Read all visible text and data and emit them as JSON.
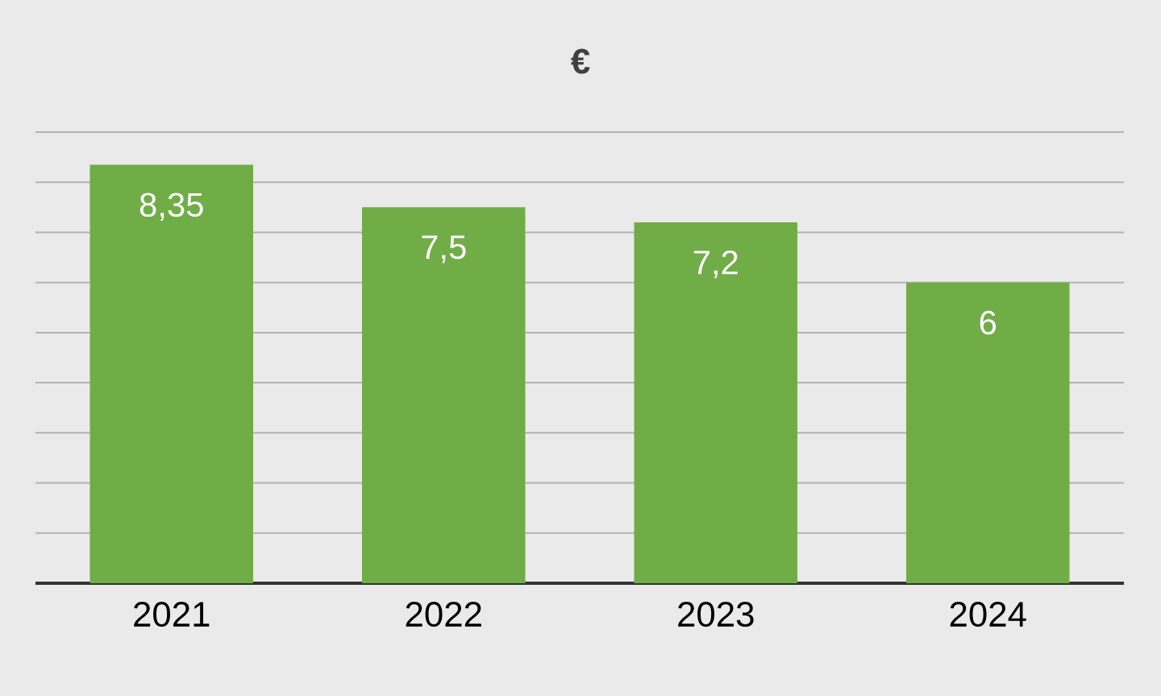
{
  "chart_data": {
    "type": "bar",
    "title": "€",
    "categories": [
      "2021",
      "2022",
      "2023",
      "2024"
    ],
    "values": [
      8.35,
      7.5,
      7.2,
      6
    ],
    "value_labels": [
      "8,35",
      "7,5",
      "7,2",
      "6"
    ],
    "color": "#70ad47",
    "ylim": [
      0,
      9
    ],
    "yticks": [
      {
        "value": 0,
        "label": null
      },
      {
        "value": 1,
        "label": null
      },
      {
        "value": 2,
        "label": null
      },
      {
        "value": 3,
        "label": null
      },
      {
        "value": 4,
        "label": null
      },
      {
        "value": 5,
        "label": null
      },
      {
        "value": 6,
        "label": null
      },
      {
        "value": 7,
        "label": null
      },
      {
        "value": 8,
        "label": null
      },
      {
        "value": 9,
        "label": null
      }
    ],
    "grid": "y"
  }
}
